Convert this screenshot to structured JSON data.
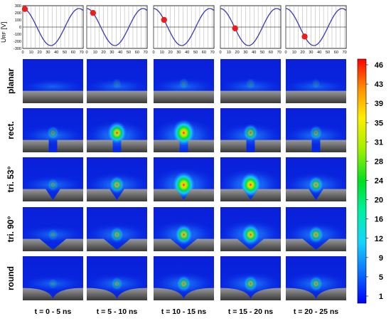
{
  "rf_panels": {
    "y_label": "U",
    "y_label_sub": "RF",
    "y_label_unit": "[V]",
    "y_ticks": [
      "300",
      "200",
      "100",
      "0",
      "-100",
      "-200",
      "-300"
    ],
    "x_ticks": [
      "0",
      "10",
      "20",
      "30",
      "40",
      "50",
      "60",
      "70"
    ],
    "amplitude_V": 260,
    "period_ns": 67,
    "marker_times_ns": [
      2.5,
      7.5,
      12.5,
      17.5,
      22.5
    ],
    "curve_color": "#3a3ab8",
    "marker_color": "#ee1c1c"
  },
  "rows": [
    "planar",
    "rect.",
    "tri. 53°",
    "tri. 90°",
    "round"
  ],
  "columns": [
    "t = 0 - 5 ns",
    "t = 5 - 10 ns",
    "t = 10 - 15 ns",
    "t = 15 - 20 ns",
    "t = 20 - 25 ns"
  ],
  "colorbar": {
    "ticks": [
      "46",
      "43",
      "39",
      "35",
      "31",
      "28",
      "24",
      "20",
      "16",
      "12",
      "9",
      "5",
      "1"
    ],
    "colors_bottom_to_top": [
      "#0000ff",
      "#0a6cff",
      "#14d4ff",
      "#00f0a0",
      "#00e020",
      "#a0f000",
      "#ffee00",
      "#ff9000",
      "#ff0000"
    ]
  },
  "intensity": [
    [
      0.12,
      0.18,
      0.22,
      0.2,
      0.16
    ],
    [
      0.35,
      0.8,
      1.0,
      0.55,
      0.4
    ],
    [
      0.3,
      0.55,
      1.0,
      0.9,
      0.55
    ],
    [
      0.25,
      0.45,
      0.7,
      0.75,
      0.55
    ],
    [
      0.2,
      0.35,
      0.5,
      0.5,
      0.45
    ]
  ]
}
